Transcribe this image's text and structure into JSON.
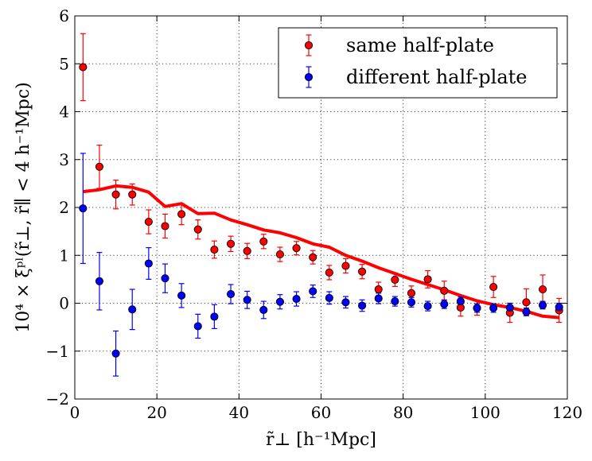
{
  "chart_data": {
    "type": "scatter",
    "xlabel": "r̃⊥  [h⁻¹Mpc]",
    "ylabel": "10⁴ × ξᵖˡ(r̃⊥, r̃∥ < 4 h⁻¹Mpc)",
    "xlim": [
      0,
      120
    ],
    "ylim": [
      -2,
      6
    ],
    "xticks": [
      0,
      20,
      40,
      60,
      80,
      100,
      120
    ],
    "yticks": [
      -2,
      -1,
      0,
      1,
      2,
      3,
      4,
      5,
      6
    ],
    "grid": true,
    "legend_position": "top-right",
    "series": [
      {
        "name": "same half-plate",
        "color": "#ff0000",
        "x": [
          2,
          6,
          10,
          14,
          18,
          22,
          26,
          30,
          34,
          38,
          42,
          46,
          50,
          54,
          58,
          62,
          66,
          70,
          74,
          78,
          82,
          86,
          90,
          94,
          98,
          102,
          106,
          110,
          114,
          118
        ],
        "y": [
          4.93,
          2.85,
          2.27,
          2.27,
          1.7,
          1.61,
          1.86,
          1.54,
          1.12,
          1.24,
          1.09,
          1.29,
          1.02,
          1.15,
          0.96,
          0.64,
          0.78,
          0.66,
          0.29,
          0.49,
          0.21,
          0.5,
          0.26,
          -0.09,
          -0.1,
          0.34,
          -0.2,
          0.02,
          0.29,
          -0.15
        ],
        "err": [
          0.7,
          0.45,
          0.3,
          0.22,
          0.25,
          0.25,
          0.22,
          0.2,
          0.18,
          0.16,
          0.16,
          0.15,
          0.15,
          0.14,
          0.14,
          0.15,
          0.15,
          0.15,
          0.15,
          0.14,
          0.15,
          0.18,
          0.2,
          0.18,
          0.15,
          0.22,
          0.2,
          0.28,
          0.3,
          0.25
        ]
      },
      {
        "name": "different half-plate",
        "color": "#0000ff",
        "x": [
          2,
          6,
          10,
          14,
          18,
          22,
          26,
          30,
          34,
          38,
          42,
          46,
          50,
          54,
          58,
          62,
          66,
          70,
          74,
          78,
          82,
          86,
          90,
          94,
          98,
          102,
          106,
          110,
          114,
          118
        ],
        "y": [
          1.98,
          0.46,
          -1.05,
          -0.13,
          0.83,
          0.52,
          0.16,
          -0.48,
          -0.28,
          0.19,
          0.07,
          -0.14,
          0.03,
          0.09,
          0.25,
          0.11,
          0.02,
          -0.05,
          0.1,
          0.04,
          0.02,
          -0.06,
          -0.02,
          0.04,
          -0.1,
          -0.1,
          -0.09,
          -0.18,
          -0.04,
          -0.08
        ],
        "err": [
          1.15,
          0.6,
          0.47,
          0.42,
          0.33,
          0.3,
          0.25,
          0.25,
          0.25,
          0.2,
          0.18,
          0.18,
          0.15,
          0.15,
          0.13,
          0.13,
          0.12,
          0.12,
          0.11,
          0.1,
          0.1,
          0.1,
          0.09,
          0.09,
          0.09,
          0.09,
          0.09,
          0.08,
          0.08,
          0.08
        ]
      }
    ],
    "model_line": {
      "color": "#ff0000",
      "x": [
        2,
        6,
        10,
        14,
        18,
        22,
        26,
        30,
        34,
        38,
        42,
        46,
        50,
        54,
        58,
        62,
        66,
        70,
        74,
        78,
        82,
        86,
        90,
        94,
        98,
        102,
        106,
        110,
        114,
        118
      ],
      "y": [
        2.33,
        2.37,
        2.45,
        2.42,
        2.32,
        2.02,
        2.08,
        1.87,
        1.88,
        1.74,
        1.64,
        1.53,
        1.47,
        1.37,
        1.24,
        1.17,
        1.0,
        0.88,
        0.74,
        0.62,
        0.5,
        0.39,
        0.28,
        0.16,
        0.05,
        -0.03,
        -0.09,
        -0.17,
        -0.27,
        -0.3
      ]
    }
  }
}
